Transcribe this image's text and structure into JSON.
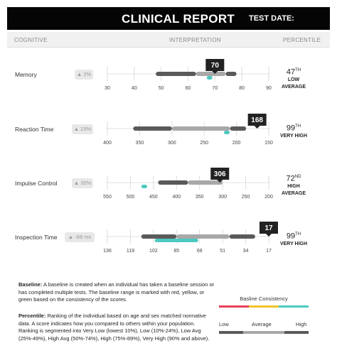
{
  "header": {
    "title": "CLINICAL REPORT",
    "test_date_label": "TEST DATE:"
  },
  "columns": {
    "cognitive": "COGNITIVE",
    "interpretation": "INTERPRETATION",
    "percentile": "PERCENTILE"
  },
  "colors": {
    "dark": "#5a5a5a",
    "light": "#a8a8a8",
    "marker": "#222222",
    "teal": "#4ec9c0",
    "red": "#e8405a",
    "yellow": "#f0c428"
  },
  "chart_data": [
    {
      "type": "range",
      "label": "Memory",
      "change": "▲ 2%",
      "score": 70,
      "ticks": [
        30,
        40,
        50,
        60,
        70,
        80,
        90
      ],
      "xlim": [
        30,
        90
      ],
      "reversed": false,
      "segments": [
        {
          "shade": "dark",
          "from": 48,
          "to": 63
        },
        {
          "shade": "light",
          "from": 63,
          "to": 74
        },
        {
          "shade": "dark",
          "from": 74,
          "to": 78
        }
      ],
      "baseline_dot": 68,
      "percentile": "47",
      "percentile_suffix": "TH",
      "percentile_desc": [
        "LOW",
        "AVERAGE"
      ]
    },
    {
      "type": "range",
      "label": "Reaction Time",
      "change": "▲ 23%",
      "score": 168,
      "ticks": [
        400,
        350,
        300,
        250,
        200,
        150
      ],
      "xlim": [
        400,
        150
      ],
      "reversed": true,
      "segments": [
        {
          "shade": "dark",
          "from": 360,
          "to": 300
        },
        {
          "shade": "light",
          "from": 300,
          "to": 210
        },
        {
          "shade": "dark",
          "from": 210,
          "to": 185
        }
      ],
      "baseline_dot": 215,
      "percentile": "99",
      "percentile_suffix": "TH",
      "percentile_desc": [
        "VERY HIGH"
      ]
    },
    {
      "type": "range",
      "label": "Impulse Control",
      "change": "▲ 35%",
      "score": 306,
      "ticks": [
        550,
        500,
        450,
        400,
        350,
        300,
        250,
        200
      ],
      "xlim": [
        550,
        200
      ],
      "reversed": true,
      "segments": [
        {
          "shade": "dark",
          "from": 440,
          "to": 375
        },
        {
          "shade": "light",
          "from": 375,
          "to": 300
        },
        {
          "shade": "dark",
          "from": 300,
          "to": 300
        }
      ],
      "baseline_dot": 470,
      "percentile": "72",
      "percentile_suffix": "ND",
      "percentile_desc": [
        "HIGH",
        "AVERAGE"
      ]
    },
    {
      "type": "range",
      "label": "Inspection Time",
      "change": "▲ -68 ms",
      "score": 17,
      "ticks": [
        136,
        119,
        102,
        85,
        68,
        51,
        34,
        17
      ],
      "xlim": [
        136,
        17
      ],
      "reversed": true,
      "segments": [
        {
          "shade": "dark",
          "from": 111,
          "to": 85
        },
        {
          "shade": "light",
          "from": 85,
          "to": 46
        },
        {
          "shade": "dark",
          "from": 46,
          "to": 27
        }
      ],
      "baseline_dot": 85,
      "baseline_dot_span": 16,
      "percentile": "99",
      "percentile_suffix": "TH",
      "percentile_desc": [
        "VERY HIGH"
      ]
    }
  ],
  "footer": {
    "baseline_title": "Baseline:",
    "baseline_text": " A baseline is created when an individual has taken a baseline session or has completed multiple tests. The baseline range is marked with red, yellow, or green based on the consistency of the scores.",
    "percentile_title": "Percentile:",
    "percentile_text": " Ranking of the individual based on age and sex matched normative data. A score indicates how you compared to others within your population. Ranking is segmented into Very Low (lowest 10%), Low (10%-24%), Low Avg (25%-49%), High Avg (50%-74%), High (75%-89%), Very High (90% and above)."
  },
  "legend": {
    "title": "Basline Consistency",
    "low": "Low",
    "average": "Average",
    "high": "High"
  }
}
